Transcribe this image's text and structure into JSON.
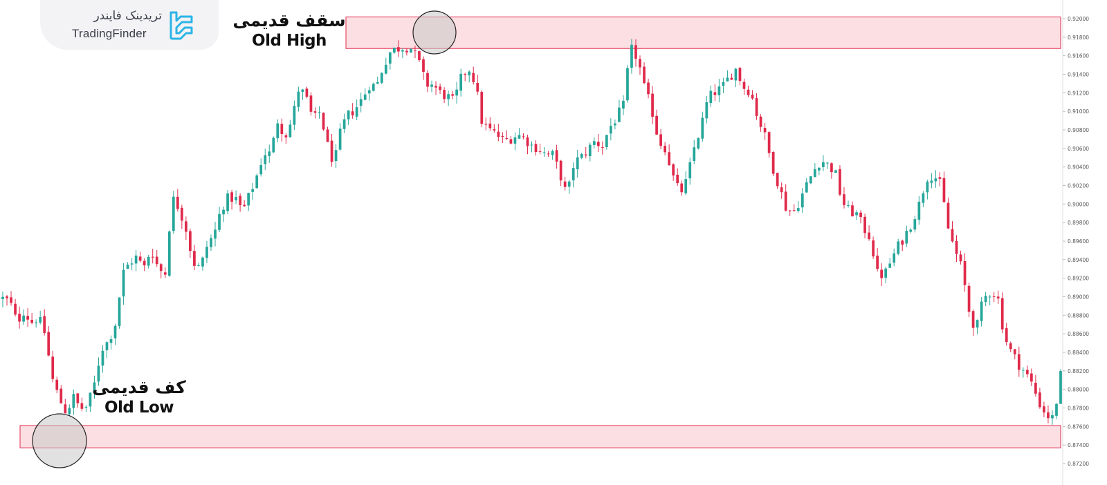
{
  "branding": {
    "name_fa": "تریدینک فایندر",
    "name_en": "TradingFinder"
  },
  "annotations": {
    "old_high": {
      "fa": "سقف قدیمی",
      "en": "Old High"
    },
    "old_low": {
      "fa": "کف قدیمی",
      "en": "Old Low"
    }
  },
  "colors": {
    "bullish": "#26a69a",
    "bearish": "#e0294a",
    "zone_fill": "#fcdfe3",
    "zone_border": "#e0294a",
    "circle_fill": "#c8c8c8",
    "axis_text": "#555555"
  },
  "chart_data": {
    "type": "candlestick",
    "y_axis_ticks": [
      "0.92000",
      "0.91800",
      "0.91600",
      "0.91400",
      "0.91200",
      "0.91000",
      "0.90800",
      "0.90600",
      "0.90400",
      "0.90200",
      "0.90000",
      "0.89800",
      "0.89600",
      "0.89400",
      "0.89200",
      "0.89000",
      "0.88800",
      "0.88600",
      "0.88400",
      "0.88200",
      "0.88000",
      "0.87800",
      "0.87600",
      "0.87400",
      "0.87200"
    ],
    "ylim": [
      0.8719,
      0.9215
    ],
    "zones": [
      {
        "name": "Old High",
        "from": 0.91678,
        "to": 0.92018
      },
      {
        "name": "Old Low",
        "from": 0.8737,
        "to": 0.8761
      }
    ],
    "anchors": [
      0.8898,
      0.8895,
      0.8872,
      0.8885,
      0.8872,
      0.8878,
      0.886,
      0.8812,
      0.879,
      0.8775,
      0.8792,
      0.8779,
      0.8782,
      0.8806,
      0.8844,
      0.8852,
      0.8872,
      0.8925,
      0.8937,
      0.8943,
      0.893,
      0.8952,
      0.8932,
      0.8923,
      0.9007,
      0.8996,
      0.8973,
      0.8937,
      0.893,
      0.8956,
      0.8968,
      0.8996,
      0.9007,
      0.9006,
      0.8992,
      0.901,
      0.903,
      0.9055,
      0.9054,
      0.9091,
      0.9073,
      0.909,
      0.9126,
      0.9115,
      0.909,
      0.91,
      0.9064,
      0.9043,
      0.9082,
      0.9096,
      0.9103,
      0.9114,
      0.9129,
      0.9127,
      0.915,
      0.9165,
      0.9168,
      0.917,
      0.9168,
      0.9153,
      0.9129,
      0.9129,
      0.912,
      0.9116,
      0.911,
      0.9136,
      0.9148,
      0.9131,
      0.9086,
      0.908,
      0.9075,
      0.9068,
      0.9071,
      0.9075,
      0.9071,
      0.9063,
      0.906,
      0.9053,
      0.9053,
      0.9033,
      0.9008,
      0.9045,
      0.905,
      0.9059,
      0.9068,
      0.9062,
      0.9082,
      0.9093,
      0.9106,
      0.9168,
      0.9158,
      0.9124,
      0.9103,
      0.9068,
      0.906,
      0.903,
      0.9011,
      0.9025,
      0.906,
      0.9083,
      0.9114,
      0.9121,
      0.9125,
      0.9137,
      0.9146,
      0.9126,
      0.9122,
      0.9095,
      0.9075,
      0.9044,
      0.9021,
      0.8997,
      0.899,
      0.9004,
      0.9021,
      0.9036,
      0.9048,
      0.9042,
      0.9035,
      0.9003,
      0.8992,
      0.899,
      0.8975,
      0.8964,
      0.8925,
      0.8923,
      0.894,
      0.8955,
      0.8967,
      0.8982,
      0.9001,
      0.9029,
      0.9032,
      0.902,
      0.8975,
      0.895,
      0.893,
      0.8885,
      0.8863,
      0.8897,
      0.8905,
      0.8903,
      0.8858,
      0.884,
      0.8828,
      0.8818,
      0.8805,
      0.8785,
      0.8772,
      0.8768,
      0.8815
    ],
    "candle_count": 255
  }
}
